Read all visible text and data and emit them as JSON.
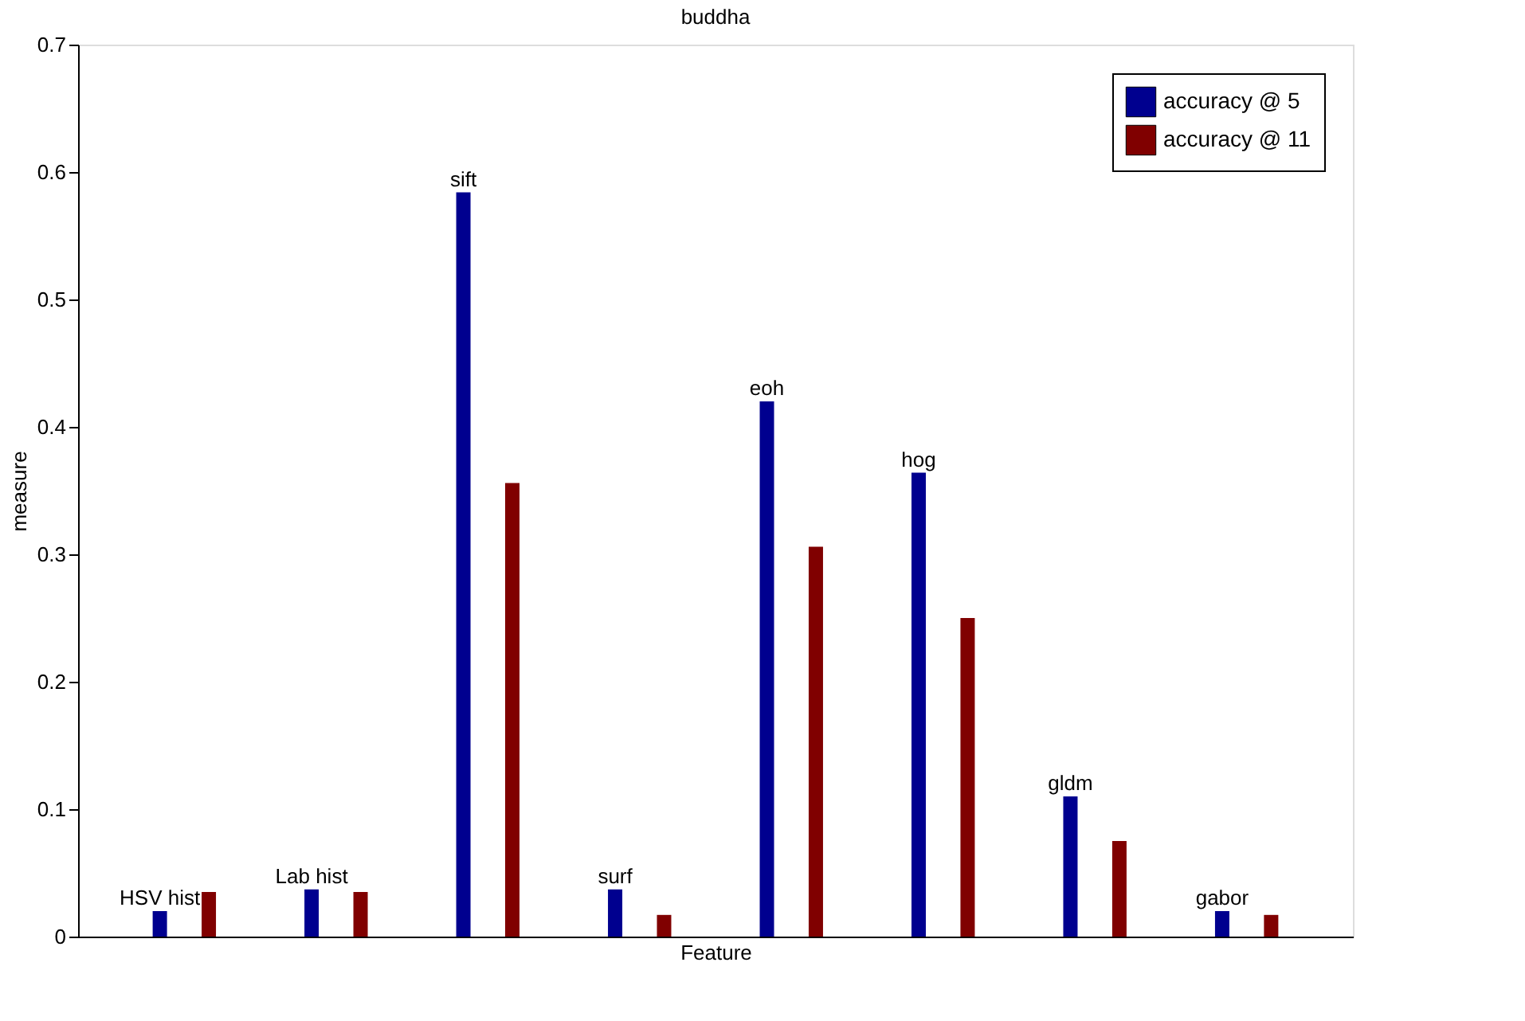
{
  "chart_data": {
    "type": "bar",
    "title": "buddha",
    "xlabel": "Feature",
    "ylabel": "measure",
    "categories": [
      "HSV hist",
      "Lab hist",
      "sift",
      "surf",
      "eoh",
      "hog",
      "gldm",
      "gabor"
    ],
    "series": [
      {
        "name": "accuracy @ 5",
        "color": "#00008f",
        "values": [
          0.02,
          0.037,
          0.584,
          0.037,
          0.42,
          0.364,
          0.11,
          0.02
        ]
      },
      {
        "name": "accuracy @ 11",
        "color": "#800000",
        "values": [
          0.035,
          0.035,
          0.356,
          0.017,
          0.306,
          0.25,
          0.075,
          0.017
        ]
      }
    ],
    "ylim": [
      0,
      0.7
    ],
    "yticks": [
      0,
      0.1,
      0.2,
      0.3,
      0.4,
      0.5,
      0.6,
      0.7
    ],
    "grid": false,
    "legend": "top right",
    "tick_labels": "y"
  }
}
